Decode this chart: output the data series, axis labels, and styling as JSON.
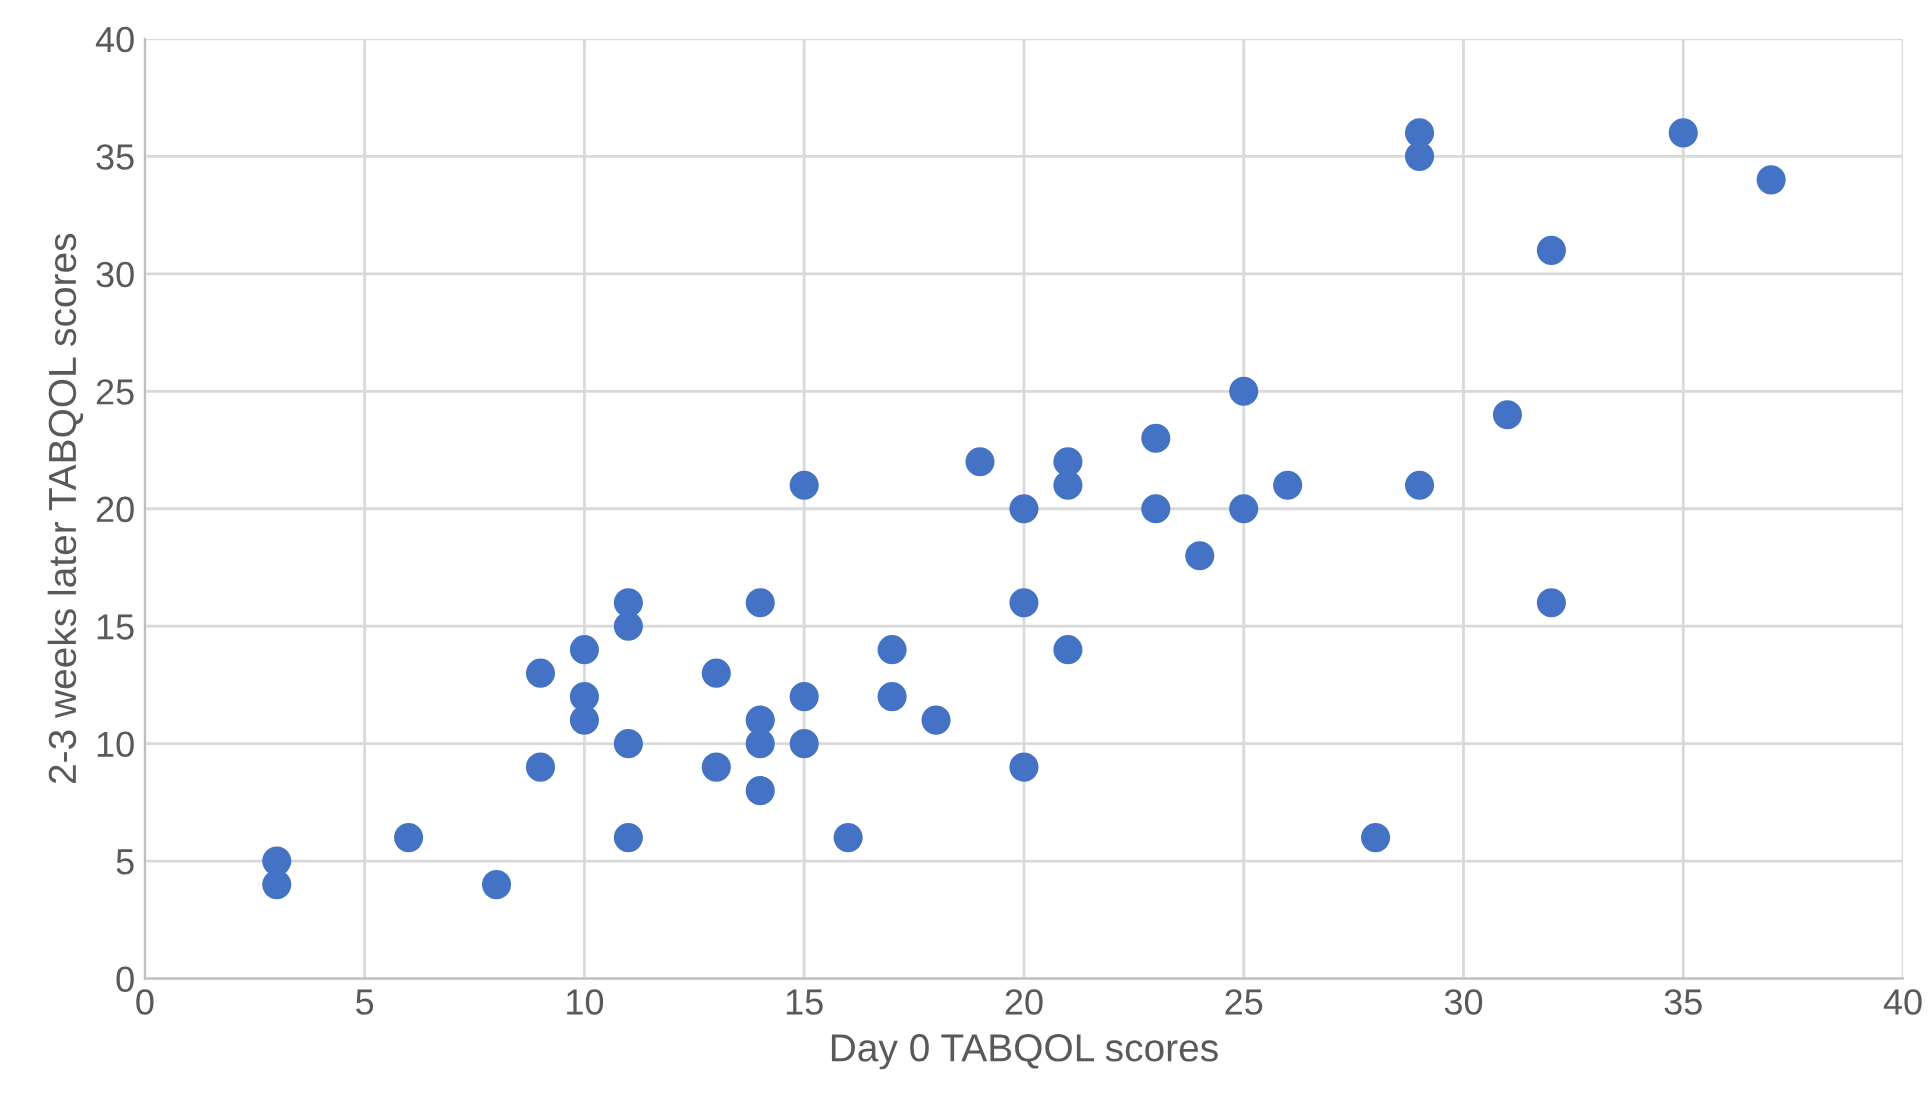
{
  "chart_data": {
    "type": "scatter",
    "xlabel": "Day 0 TABQOL scores",
    "ylabel": "2-3 weeks later TABQOL scores",
    "x": [
      3,
      3,
      6,
      8,
      9,
      9,
      10,
      10,
      10,
      11,
      11,
      11,
      11,
      13,
      13,
      14,
      14,
      14,
      14,
      15,
      15,
      15,
      16,
      17,
      17,
      18,
      19,
      20,
      20,
      20,
      21,
      21,
      21,
      23,
      23,
      24,
      25,
      25,
      26,
      28,
      29,
      29,
      29,
      31,
      32,
      32,
      35,
      37
    ],
    "series": [
      {
        "color": "#4472c4",
        "values": [
          5,
          4,
          6,
          4,
          13,
          9,
          14,
          12,
          11,
          16,
          15,
          10,
          6,
          13,
          9,
          16,
          11,
          10,
          8,
          21,
          12,
          10,
          6,
          14,
          12,
          11,
          22,
          20,
          16,
          9,
          22,
          21,
          14,
          23,
          20,
          18,
          25,
          20,
          21,
          6,
          36,
          35,
          21,
          24,
          31,
          16,
          36,
          34
        ]
      }
    ],
    "xlim": [
      0,
      40
    ],
    "xticks": [
      0,
      5,
      10,
      15,
      20,
      25,
      30,
      35,
      40
    ],
    "ylim": [
      0,
      40
    ],
    "yticks": [
      0,
      5,
      10,
      15,
      20,
      25,
      30,
      35,
      40
    ],
    "grid": true,
    "marker": "circle"
  }
}
